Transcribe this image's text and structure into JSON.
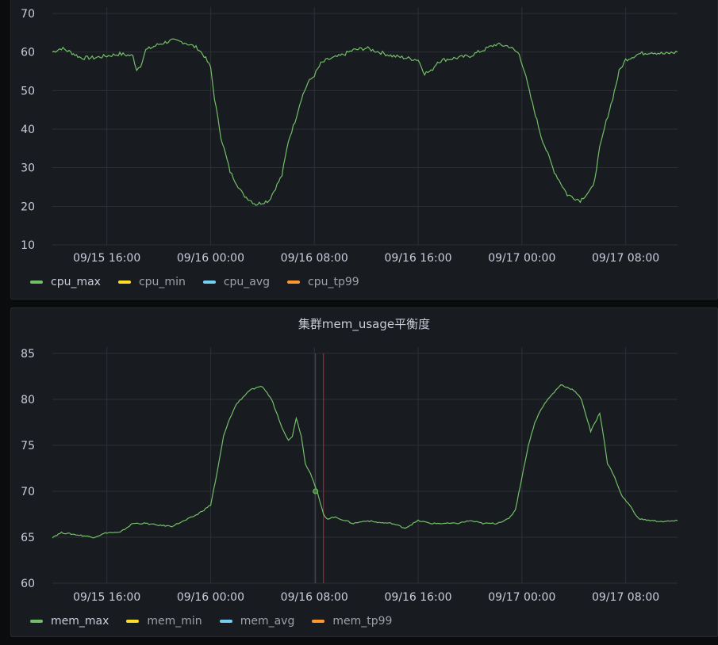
{
  "colors": {
    "grid": "#2d3036",
    "line": "#73bf69",
    "marker": "#c4162a",
    "axis_text": "#ccccdc"
  },
  "panels": [
    {
      "title": "",
      "legend": [
        {
          "label": "cpu_max",
          "color": "#73bf69"
        },
        {
          "label": "cpu_min",
          "color": "#fade2a"
        },
        {
          "label": "cpu_avg",
          "color": "#73d0f2"
        },
        {
          "label": "cpu_tp99",
          "color": "#ff9830"
        }
      ]
    },
    {
      "title": "集群mem_usage平衡度",
      "legend": [
        {
          "label": "mem_max",
          "color": "#73bf69"
        },
        {
          "label": "mem_min",
          "color": "#fade2a"
        },
        {
          "label": "mem_avg",
          "color": "#73d0f2"
        },
        {
          "label": "mem_tp99",
          "color": "#ff9830"
        }
      ]
    }
  ],
  "chart_data": [
    {
      "type": "line",
      "title": "",
      "xlabel": "",
      "ylabel": "",
      "x_ticks": [
        "09/15 16:00",
        "09/16 00:00",
        "09/16 08:00",
        "09/16 16:00",
        "09/17 00:00",
        "09/17 08:00"
      ],
      "x_tick_hours": [
        16,
        24,
        32,
        40,
        48,
        56
      ],
      "xlim_hours": [
        11.8,
        60
      ],
      "y_ticks": [
        10,
        20,
        30,
        40,
        50,
        60,
        70
      ],
      "ylim": [
        10,
        70
      ],
      "grid": true,
      "legend_position": "bottom-left",
      "series": [
        {
          "name": "cpu_max",
          "color": "#73bf69",
          "x_hours": [
            11.8,
            12.5,
            13.2,
            14.0,
            15.0,
            16.0,
            17.0,
            18.0,
            18.3,
            18.6,
            19.0,
            20.0,
            21.0,
            22.0,
            23.0,
            23.5,
            24.0,
            24.3,
            24.8,
            25.5,
            26.5,
            27.5,
            28.5,
            29.5,
            30.0,
            30.5,
            31.0,
            31.5,
            32.0,
            32.5,
            33.0,
            34.0,
            35.0,
            36.0,
            37.0,
            38.0,
            39.0,
            40.0,
            40.5,
            41.0,
            41.5,
            42.0,
            43.0,
            44.0,
            45.0,
            46.0,
            47.0,
            47.8,
            48.2,
            48.7,
            49.5,
            50.5,
            51.5,
            52.5,
            53.5,
            54.0,
            54.5,
            55.0,
            55.5,
            56.0,
            57.0,
            58.0,
            59.0,
            60.0
          ],
          "values": [
            60,
            61,
            60,
            58.5,
            58.5,
            59,
            59.5,
            59,
            55.5,
            56.5,
            60.5,
            62,
            63,
            62.5,
            61,
            59,
            56,
            48,
            38,
            29,
            23,
            20.5,
            21.5,
            28,
            37,
            42,
            48,
            52,
            54,
            57,
            58,
            59,
            60.5,
            61,
            60,
            59,
            58.5,
            58,
            54.5,
            55,
            57.5,
            58,
            58.5,
            59,
            60.5,
            62,
            61.5,
            59.5,
            55,
            48,
            38,
            29,
            23,
            21.5,
            25,
            35,
            42,
            48,
            55,
            58,
            59.5,
            60,
            59.5,
            60
          ]
        },
        {
          "name": "cpu_min",
          "color": "#fade2a",
          "x_hours": [],
          "values": []
        },
        {
          "name": "cpu_avg",
          "color": "#73d0f2",
          "x_hours": [],
          "values": []
        },
        {
          "name": "cpu_tp99",
          "color": "#ff9830",
          "x_hours": [],
          "values": []
        }
      ]
    },
    {
      "type": "line",
      "title": "集群mem_usage平衡度",
      "xlabel": "",
      "ylabel": "",
      "x_ticks": [
        "09/15 16:00",
        "09/16 00:00",
        "09/16 08:00",
        "09/16 16:00",
        "09/17 00:00",
        "09/17 08:00"
      ],
      "x_tick_hours": [
        16,
        24,
        32,
        40,
        48,
        56
      ],
      "xlim_hours": [
        11.8,
        60
      ],
      "y_ticks": [
        60,
        65,
        70,
        75,
        80,
        85
      ],
      "ylim": [
        60,
        85
      ],
      "grid": true,
      "legend_position": "bottom-left",
      "cursor_hours": 32.7,
      "series": [
        {
          "name": "mem_max",
          "color": "#73bf69",
          "x_hours": [
            11.8,
            12.5,
            13.5,
            15.0,
            16.0,
            17.0,
            18.0,
            19.0,
            20.0,
            21.0,
            22.0,
            23.0,
            23.5,
            24.0,
            24.5,
            25.0,
            25.5,
            26.0,
            27.0,
            28.0,
            28.7,
            29.5,
            30.0,
            30.3,
            30.6,
            31.0,
            31.3,
            31.7,
            32.2,
            32.7,
            33.0,
            33.5,
            34.0,
            35.0,
            36.0,
            37.0,
            38.0,
            39.0,
            40.0,
            41.0,
            42.0,
            43.0,
            44.0,
            45.0,
            46.0,
            47.0,
            47.5,
            48.0,
            48.5,
            49.0,
            49.5,
            50.0,
            51.0,
            52.0,
            52.6,
            53.3,
            54.0,
            54.3,
            54.6,
            55.0,
            55.3,
            55.7,
            56.3,
            57.0,
            58.0,
            59.0,
            60.0
          ],
          "values": [
            65,
            65.5,
            65.3,
            65,
            65.5,
            65.5,
            66.5,
            66.5,
            66.3,
            66.2,
            66.8,
            67.5,
            68,
            68.5,
            72,
            76,
            78,
            79.5,
            81,
            81.4,
            80,
            77,
            75.5,
            76,
            78,
            76,
            73,
            72,
            70,
            67.5,
            67,
            67.2,
            67,
            66.5,
            66.8,
            66.6,
            66.5,
            66,
            66.8,
            66.5,
            66.5,
            66.5,
            66.8,
            66.5,
            66.5,
            67,
            68,
            71.5,
            75,
            77.5,
            79,
            80,
            81.6,
            81,
            80,
            76.5,
            78.5,
            76,
            73,
            72,
            71,
            69.5,
            68.5,
            67,
            66.8,
            66.7,
            66.8
          ]
        },
        {
          "name": "mem_min",
          "color": "#fade2a",
          "x_hours": [],
          "values": []
        },
        {
          "name": "mem_avg",
          "color": "#73d0f2",
          "x_hours": [],
          "values": []
        },
        {
          "name": "mem_tp99",
          "color": "#ff9830",
          "x_hours": [],
          "values": []
        }
      ]
    }
  ]
}
